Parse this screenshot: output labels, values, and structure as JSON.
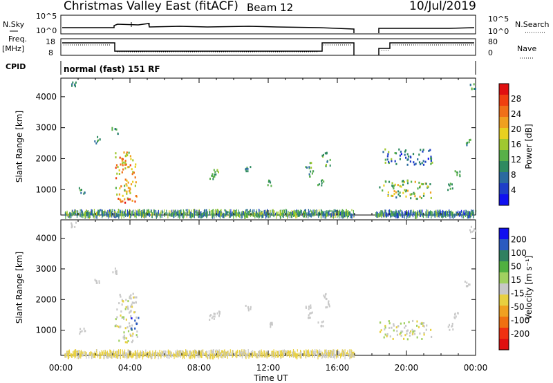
{
  "header": {
    "station": "Christmas Valley East (fitACF)",
    "beam": "Beam 12",
    "date": "10/Jul/2019"
  },
  "top_panels": {
    "nsky_label": "N.Sky",
    "nsearch_label": "N.Search",
    "freq_label_1": "Freq.",
    "freq_label_2": "[MHz]",
    "nave_label": "Nave",
    "cpid_label": "CPID",
    "cpid_value": "normal (fast) 151 RF",
    "noise_ticks_left": [
      "10^5",
      "10^0"
    ],
    "noise_ticks_right": [
      "10^5",
      "10^0"
    ],
    "freq_ticks": [
      "18",
      "8"
    ],
    "nave_ticks": [
      "80",
      "0"
    ]
  },
  "axes": {
    "ylabel": "Slant Range [km]",
    "xlabel": "Time UT",
    "yticks": [
      "4000",
      "3000",
      "2000",
      "1000"
    ],
    "xticks": [
      "00:00",
      "04:00",
      "08:00",
      "12:00",
      "16:00",
      "20:00",
      "00:00"
    ]
  },
  "power_scale": {
    "label": "Power [dB]",
    "ticks": [
      "28",
      "24",
      "20",
      "16",
      "12",
      "8",
      "4"
    ],
    "colors": [
      "#e01010",
      "#f04010",
      "#f07018",
      "#f0a020",
      "#e8d020",
      "#a0c830",
      "#58b048",
      "#2f8a60",
      "#2a6aa0",
      "#1e3ec8",
      "#1010f0"
    ]
  },
  "velocity_scale": {
    "label": "Velocity [m s⁻¹]",
    "ticks": [
      "200",
      "100",
      "50",
      "15",
      "-15",
      "-50",
      "-100",
      "-200"
    ],
    "colors": [
      "#1010f0",
      "#2a5ac0",
      "#2f8060",
      "#50b040",
      "#a0d060",
      "#c8c8c8",
      "#e8d040",
      "#f0a020",
      "#f07010",
      "#f03010",
      "#e01010"
    ]
  },
  "chart_data": [
    {
      "type": "heatmap",
      "title": "Power",
      "xlabel": "Time UT",
      "ylabel": "Slant Range [km]",
      "xlim_hours": [
        0,
        24
      ],
      "ylim_km": [
        180,
        4600
      ],
      "data_gap_hours": [
        17.0,
        18.2
      ],
      "colorbar": "Power [dB]",
      "colorbar_range": [
        0,
        30
      ],
      "features": [
        {
          "region": "ground scatter band",
          "t": [
            0.2,
            17.0
          ],
          "r": [
            190,
            350
          ],
          "power_db": 10
        },
        {
          "region": "ground scatter band",
          "t": [
            18.2,
            24.0
          ],
          "r": [
            190,
            330
          ],
          "power_db": 8
        },
        {
          "region": "strong echo",
          "t": [
            3.1,
            4.4
          ],
          "r": [
            600,
            2200
          ],
          "power_db": 20
        },
        {
          "region": "red spot",
          "t": [
            3.6,
            4.0
          ],
          "r": [
            550,
            700
          ],
          "power_db": 28
        },
        {
          "region": "high echo",
          "t": [
            18.4,
            21.4
          ],
          "r": [
            700,
            1300
          ],
          "power_db": 14
        },
        {
          "region": "far echo",
          "t": [
            18.6,
            21.5
          ],
          "r": [
            1800,
            2300
          ],
          "power_db": 8
        }
      ]
    },
    {
      "type": "heatmap",
      "title": "Velocity",
      "xlabel": "Time UT",
      "ylabel": "Slant Range [km]",
      "xlim_hours": [
        0,
        24
      ],
      "ylim_km": [
        180,
        4600
      ],
      "data_gap_hours": [
        17.0,
        18.2
      ],
      "colorbar": "Velocity [m s⁻¹]",
      "colorbar_range": [
        -250,
        250
      ],
      "features": [
        {
          "region": "ground scatter band",
          "t": [
            0.2,
            17.0
          ],
          "r": [
            190,
            350
          ],
          "velocity": -30
        },
        {
          "region": "strong echo",
          "t": [
            3.1,
            4.4
          ],
          "r": [
            600,
            2200
          ],
          "velocity": 0
        },
        {
          "region": "approaching echo",
          "t": [
            4.0,
            4.5
          ],
          "r": [
            1000,
            1400
          ],
          "velocity": 200
        },
        {
          "region": "high echo",
          "t": [
            18.4,
            21.4
          ],
          "r": [
            700,
            1300
          ],
          "velocity": 0
        }
      ]
    }
  ]
}
